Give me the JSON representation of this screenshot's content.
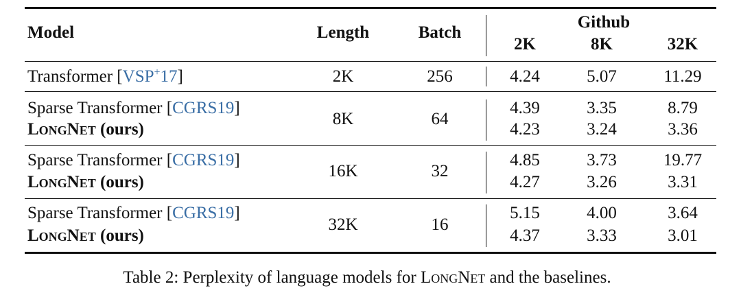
{
  "table": {
    "header": {
      "model": "Model",
      "length": "Length",
      "batch": "Batch",
      "group": "Github",
      "subcols": [
        "2K",
        "8K",
        "32K"
      ]
    },
    "groups": [
      {
        "length": "2K",
        "batch": "256",
        "models": [
          {
            "segments": [
              {
                "text": "Transformer ["
              },
              {
                "text": "VSP",
                "link": true
              },
              {
                "text": "+",
                "link": true,
                "sup": true
              },
              {
                "text": "17",
                "link": true
              },
              {
                "text": "]"
              }
            ],
            "values": [
              "4.24",
              "5.07",
              "11.29"
            ]
          }
        ]
      },
      {
        "length": "8K",
        "batch": "64",
        "models": [
          {
            "segments": [
              {
                "text": "Sparse Transformer ["
              },
              {
                "text": "CGRS19",
                "link": true
              },
              {
                "text": "]"
              }
            ],
            "values": [
              "4.39",
              "3.35",
              "8.79"
            ]
          },
          {
            "segments": [
              {
                "text": "LongNet",
                "bold": true,
                "smallcaps": true
              },
              {
                "text": " (ours)",
                "bold": true
              }
            ],
            "values": [
              "4.23",
              "3.24",
              "3.36"
            ]
          }
        ]
      },
      {
        "length": "16K",
        "batch": "32",
        "models": [
          {
            "segments": [
              {
                "text": "Sparse Transformer ["
              },
              {
                "text": "CGRS19",
                "link": true
              },
              {
                "text": "]"
              }
            ],
            "values": [
              "4.85",
              "3.73",
              "19.77"
            ]
          },
          {
            "segments": [
              {
                "text": "LongNet",
                "bold": true,
                "smallcaps": true
              },
              {
                "text": " (ours)",
                "bold": true
              }
            ],
            "values": [
              "4.27",
              "3.26",
              "3.31"
            ]
          }
        ]
      },
      {
        "length": "32K",
        "batch": "16",
        "models": [
          {
            "segments": [
              {
                "text": "Sparse Transformer ["
              },
              {
                "text": "CGRS19",
                "link": true
              },
              {
                "text": "]"
              }
            ],
            "values": [
              "5.15",
              "4.00",
              "3.64"
            ]
          },
          {
            "segments": [
              {
                "text": "LongNet",
                "bold": true,
                "smallcaps": true
              },
              {
                "text": " (ours)",
                "bold": true
              }
            ],
            "values": [
              "4.37",
              "3.33",
              "3.01"
            ]
          }
        ]
      }
    ]
  },
  "caption": [
    {
      "text": "Table 2: Perplexity of language models for "
    },
    {
      "text": "LongNet",
      "smallcaps": true
    },
    {
      "text": " and the baselines."
    }
  ]
}
